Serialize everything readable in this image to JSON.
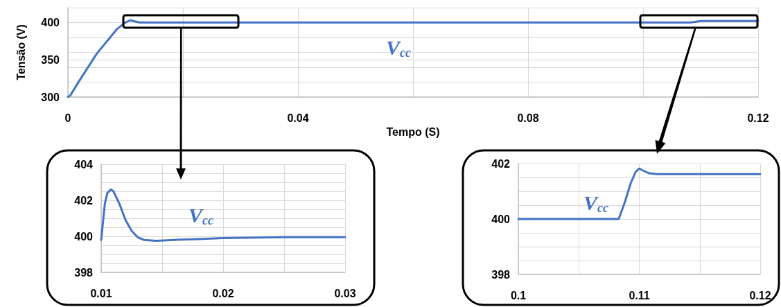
{
  "chart_data": [
    {
      "type": "line",
      "xlabel": "Tempo (S)",
      "ylabel": "Tensão (V)",
      "x": [
        0,
        0.0004,
        0.002,
        0.005,
        0.0085,
        0.01,
        0.0108,
        0.0125,
        0.0145,
        0.02,
        0.03,
        0.1083,
        0.11,
        0.1115,
        0.12
      ],
      "series": [
        {
          "color": "#4472c4",
          "values": [
            300,
            302,
            322,
            358,
            391,
            400,
            403,
            400,
            400,
            400,
            400,
            400,
            402,
            402,
            402
          ]
        }
      ],
      "xlim": [
        0,
        0.12
      ],
      "xticks": [
        0,
        {
          "value": 0.02,
          "label": null
        },
        0.04,
        {
          "value": 0.06,
          "label": null
        },
        0.08,
        {
          "value": 0.1,
          "label": null
        },
        0.12
      ],
      "ylim": [
        300,
        420
      ],
      "yticks": [
        300,
        {
          "value": 320,
          "label": null
        },
        {
          "value": 340,
          "label": null
        },
        350,
        {
          "value": 360,
          "label": null
        },
        {
          "value": 380,
          "label": null
        },
        400,
        {
          "value": 420,
          "label": null
        }
      ],
      "annotations": [
        "V$_{cc}$"
      ],
      "grid": true
    },
    {
      "type": "line",
      "x": [
        0.01,
        0.0103,
        0.0105,
        0.0108,
        0.011,
        0.0115,
        0.012,
        0.0125,
        0.013,
        0.0135,
        0.0145,
        0.016,
        0.018,
        0.02,
        0.025,
        0.03
      ],
      "series": [
        {
          "color": "#4472c4",
          "values": [
            399.8,
            401.8,
            402.4,
            402.6,
            402.5,
            401.8,
            400.9,
            400.3,
            399.95,
            399.8,
            399.75,
            399.8,
            399.85,
            399.9,
            399.95,
            399.95
          ]
        }
      ],
      "xlim": [
        0.01,
        0.03
      ],
      "xticks": [
        0.01,
        {
          "value": 0.015,
          "label": null
        },
        0.02,
        {
          "value": 0.025,
          "label": null
        },
        0.03
      ],
      "ylim": [
        398,
        404
      ],
      "yticks": [
        398,
        {
          "value": 398.5,
          "label": null
        },
        {
          "value": 399,
          "label": null
        },
        {
          "value": 399.5,
          "label": null
        },
        400,
        {
          "value": 400.5,
          "label": null
        },
        {
          "value": 401,
          "label": null
        },
        {
          "value": 401.5,
          "label": null
        },
        402,
        {
          "value": 402.5,
          "label": null
        },
        {
          "value": 403,
          "label": null
        },
        {
          "value": 403.5,
          "label": null
        },
        404
      ],
      "annotations": [
        "V$_{cc}$"
      ],
      "grid": true
    },
    {
      "type": "line",
      "x": [
        0.1,
        0.1083,
        0.1088,
        0.1093,
        0.1097,
        0.11,
        0.1103,
        0.1108,
        0.1115,
        0.12
      ],
      "series": [
        {
          "color": "#4472c4",
          "values": [
            400,
            400,
            400.6,
            401.3,
            401.7,
            401.82,
            401.75,
            401.65,
            401.62,
            401.62
          ]
        }
      ],
      "xlim": [
        0.1,
        0.12
      ],
      "xticks": [
        0.1,
        {
          "value": 0.105,
          "label": null
        },
        0.11,
        {
          "value": 0.115,
          "label": null
        },
        0.12
      ],
      "ylim": [
        398,
        402
      ],
      "yticks": [
        398,
        {
          "value": 398.5,
          "label": null
        },
        {
          "value": 399,
          "label": null
        },
        {
          "value": 399.5,
          "label": null
        },
        400,
        {
          "value": 400.5,
          "label": null
        },
        {
          "value": 401,
          "label": null
        },
        {
          "value": 401.5,
          "label": null
        },
        402
      ],
      "annotations": [
        "V$_{cc}$"
      ],
      "grid": true
    }
  ]
}
